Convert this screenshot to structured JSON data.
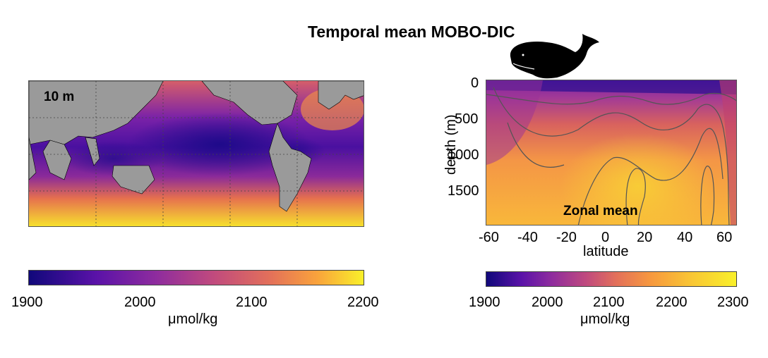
{
  "title": "Temporal mean MOBO-DIC",
  "map": {
    "depth_label": "10 m",
    "colorbar": {
      "ticks": [
        "1900",
        "2000",
        "2100",
        "2200"
      ],
      "unit": "μmol/kg"
    }
  },
  "section": {
    "label": "Zonal mean",
    "ylabel": "depth (m)",
    "xlabel": "latitude",
    "yticks": [
      "0",
      "500",
      "1000",
      "1500"
    ],
    "xticks": [
      "-60",
      "-40",
      "-20",
      "0",
      "20",
      "40",
      "60"
    ],
    "colorbar": {
      "ticks": [
        "1900",
        "2000",
        "2100",
        "2200",
        "2300"
      ],
      "unit": "μmol/kg"
    }
  },
  "chart_data": [
    {
      "type": "heatmap",
      "title": "",
      "label": "10 m",
      "description_units": "μmol/kg",
      "colorbar_range": [
        1900,
        2200
      ],
      "colorbar_ticks": [
        1900,
        2000,
        2100,
        2200
      ]
    },
    {
      "type": "heatmap",
      "label": "Zonal mean",
      "xlabel": "latitude",
      "ylabel": "depth (m)",
      "xlim": [
        -65,
        65
      ],
      "ylim": [
        0,
        1950
      ],
      "y_inverted": true,
      "xticks": [
        -60,
        -40,
        -20,
        0,
        20,
        40,
        60
      ],
      "yticks": [
        0,
        500,
        1000,
        1500
      ],
      "colorbar_range": [
        1900,
        2300
      ],
      "colorbar_ticks": [
        1900,
        2000,
        2100,
        2200,
        2300
      ],
      "units": "μmol/kg"
    }
  ],
  "colors": {
    "low": "#10087a",
    "mid": "#c04a7e",
    "high": "#f9f02a",
    "land": "#9a9a9a"
  }
}
